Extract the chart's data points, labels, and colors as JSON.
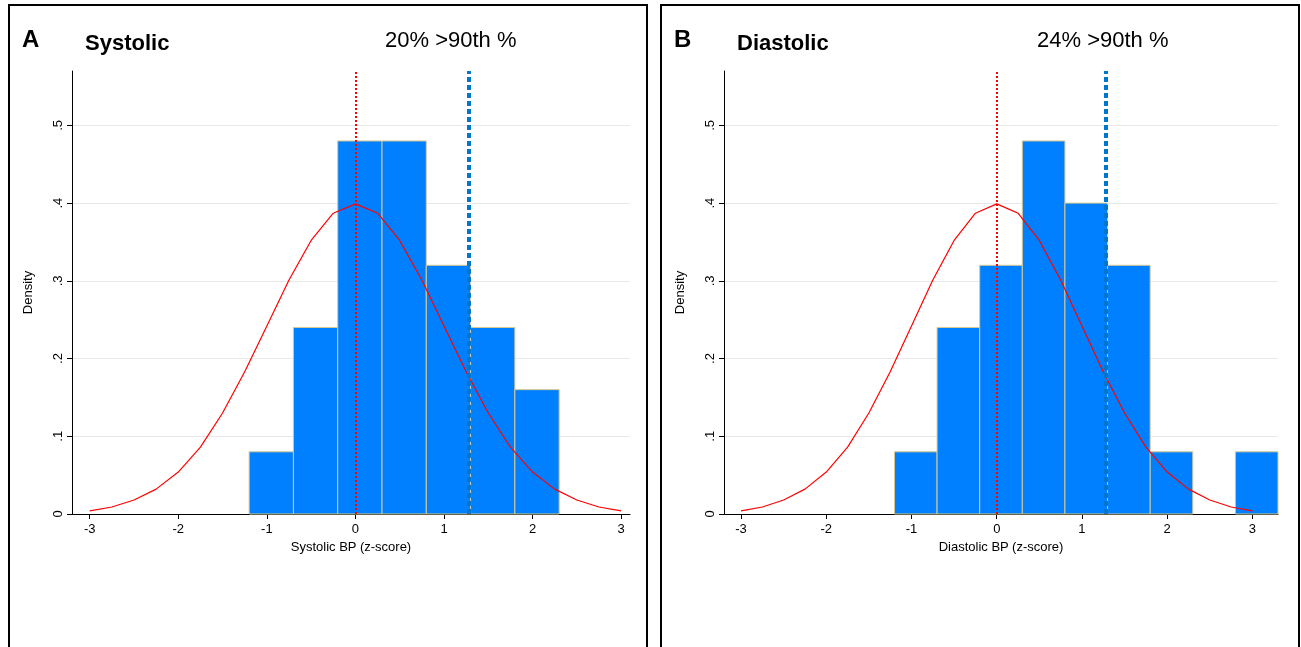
{
  "chart_data": [
    {
      "type": "histogram",
      "title": "Systolic",
      "annotations": [
        "A",
        "20% >90th %"
      ],
      "xlabel": "Systolic BP (z-score)",
      "ylabel": "Density",
      "color": "#0080ff",
      "bins": [
        -1.2,
        -0.7,
        -0.2,
        0.3,
        0.8,
        1.3,
        1.8,
        2.3
      ],
      "values": [
        0.08,
        0.24,
        0.48,
        0.48,
        0.32,
        0.24,
        0.16
      ],
      "series": [
        {
          "type": "line",
          "color": "#ff0000",
          "x": [
            -3,
            -2.75,
            -2.5,
            -2.25,
            -2,
            -1.75,
            -1.5,
            -1.25,
            -1,
            -0.75,
            -0.5,
            -0.25,
            0,
            0.25,
            0.5,
            0.75,
            1,
            1.25,
            1.5,
            1.75,
            2,
            2.25,
            2.5,
            2.75,
            3
          ],
          "values": [
            0.004,
            0.009,
            0.018,
            0.032,
            0.054,
            0.086,
            0.13,
            0.183,
            0.242,
            0.301,
            0.352,
            0.387,
            0.399,
            0.387,
            0.352,
            0.301,
            0.242,
            0.183,
            0.13,
            0.086,
            0.054,
            0.032,
            0.018,
            0.009,
            0.004
          ]
        }
      ],
      "xlim": [
        -3.2,
        3.1
      ],
      "xticks": [
        -3,
        -2,
        -1,
        0,
        1,
        2,
        3
      ],
      "ylim": [
        0,
        0.57
      ],
      "yticks": [
        0,
        {
          "value": 0.1,
          "label": ".1"
        },
        {
          "value": 0.2,
          "label": ".2"
        },
        {
          "value": 0.3,
          "label": ".3"
        },
        {
          "value": 0.4,
          "label": ".4"
        },
        {
          "value": 0.5,
          "label": ".5"
        }
      ],
      "ref_lines": [
        {
          "axis": "x",
          "value": 0,
          "color": "#ff0000",
          "line_style": "dotted"
        },
        {
          "axis": "x",
          "value": 1.28,
          "color": "#0077cc",
          "line_style": "dashed"
        }
      ],
      "grid": "y"
    },
    {
      "type": "histogram",
      "title": "Diastolic",
      "annotations": [
        "B",
        "24% >90th %"
      ],
      "xlabel": "Diastolic BP (z-score)",
      "ylabel": "Density",
      "color": "#0080ff",
      "bins": [
        -1.2,
        -0.7,
        -0.2,
        0.3,
        0.8,
        1.3,
        1.8,
        2.3,
        2.8,
        3.3
      ],
      "values": [
        0.08,
        0.24,
        0.32,
        0.48,
        0.4,
        0.32,
        0.08,
        0,
        0.08
      ],
      "series": [
        {
          "type": "line",
          "color": "#ff0000",
          "x": [
            -3,
            -2.75,
            -2.5,
            -2.25,
            -2,
            -1.75,
            -1.5,
            -1.25,
            -1,
            -0.75,
            -0.5,
            -0.25,
            0,
            0.25,
            0.5,
            0.75,
            1,
            1.25,
            1.5,
            1.75,
            2,
            2.25,
            2.5,
            2.75,
            3
          ],
          "values": [
            0.004,
            0.009,
            0.018,
            0.032,
            0.054,
            0.086,
            0.13,
            0.183,
            0.242,
            0.301,
            0.352,
            0.387,
            0.399,
            0.387,
            0.352,
            0.301,
            0.242,
            0.183,
            0.13,
            0.086,
            0.054,
            0.032,
            0.018,
            0.009,
            0.004
          ]
        }
      ],
      "xlim": [
        -3.2,
        3.3
      ],
      "xticks": [
        -3,
        -2,
        -1,
        0,
        1,
        2,
        3
      ],
      "ylim": [
        0,
        0.57
      ],
      "yticks": [
        0,
        {
          "value": 0.1,
          "label": ".1"
        },
        {
          "value": 0.2,
          "label": ".2"
        },
        {
          "value": 0.3,
          "label": ".3"
        },
        {
          "value": 0.4,
          "label": ".4"
        },
        {
          "value": 0.5,
          "label": ".5"
        }
      ],
      "ref_lines": [
        {
          "axis": "x",
          "value": 0,
          "color": "#ff0000",
          "line_style": "dotted"
        },
        {
          "axis": "x",
          "value": 1.28,
          "color": "#0077cc",
          "line_style": "dashed"
        }
      ],
      "grid": "y"
    }
  ]
}
